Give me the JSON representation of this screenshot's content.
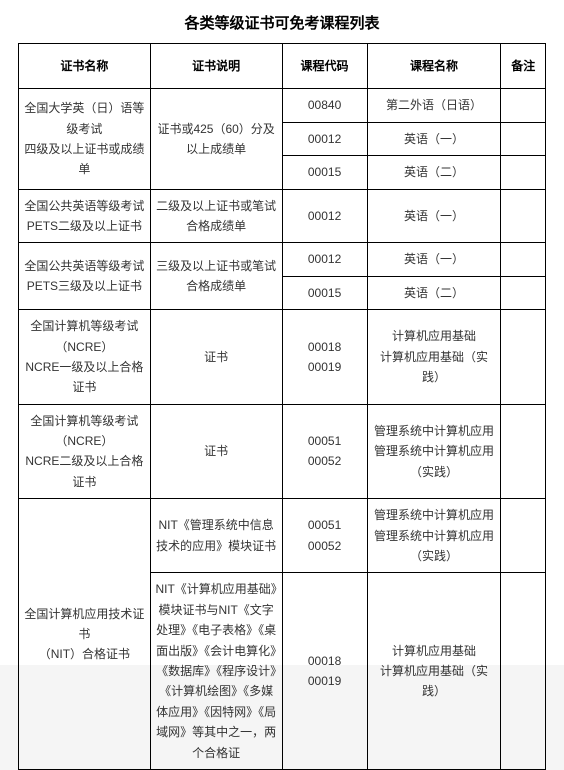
{
  "title": "各类等级证书可免考课程列表",
  "headers": {
    "cert_name": "证书名称",
    "cert_desc": "证书说明",
    "course_code": "课程代码",
    "course_name": "课程名称",
    "remark": "备注"
  },
  "rows": [
    {
      "cert_name": "全国大学英（日）语等级考试\n四级及以上证书或成绩单",
      "cert_desc": "证书或425（60）分及以上成绩单",
      "course_code": "00840",
      "course_name": "第二外语（日语）",
      "remark": "",
      "rs_name": 3,
      "rs_desc": 3
    },
    {
      "course_code": "00012",
      "course_name": "英语（一）",
      "remark": ""
    },
    {
      "course_code": "00015",
      "course_name": "英语（二）",
      "remark": ""
    },
    {
      "cert_name": "全国公共英语等级考试\nPETS二级及以上证书",
      "cert_desc": "二级及以上证书或笔试合格成绩单",
      "course_code": "00012",
      "course_name": "英语（一）",
      "remark": ""
    },
    {
      "cert_name": "全国公共英语等级考试\nPETS三级及以上证书",
      "cert_desc": "三级及以上证书或笔试合格成绩单",
      "course_code": "00012",
      "course_name": "英语（一）",
      "remark": "",
      "rs_name": 2,
      "rs_desc": 2
    },
    {
      "course_code": "00015",
      "course_name": "英语（二）",
      "remark": ""
    },
    {
      "cert_name": "全国计算机等级考试\n（NCRE）\nNCRE一级及以上合格证书",
      "cert_desc": "证书",
      "course_code": "00018\n00019",
      "course_name": "计算机应用基础\n计算机应用基础（实践）",
      "remark": ""
    },
    {
      "cert_name": "全国计算机等级考试\n（NCRE）\nNCRE二级及以上合格证书",
      "cert_desc": "证书",
      "course_code": "00051\n00052",
      "course_name": "管理系统中计算机应用\n管理系统中计算机应用\n（实践）",
      "remark": ""
    },
    {
      "cert_name": "全国计算机应用技术证书\n（NIT）合格证书",
      "cert_desc": "NIT《管理系统中信息技术的应用》模块证书",
      "course_code": "00051\n00052",
      "course_name": "管理系统中计算机应用\n管理系统中计算机应用\n（实践）",
      "remark": "",
      "rs_name": 2
    },
    {
      "cert_desc": "NIT《计算机应用基础》模块证书与NIT《文字处理》《电子表格》《桌面出版》《会计电算化》《数据库》《程序设计》《计算机绘图》《多媒体应用》《因特网》《局域网》等其中之一，两个合格证",
      "course_code": "00018\n00019",
      "course_name": "计算机应用基础\n计算机应用基础（实践）",
      "remark": ""
    }
  ]
}
